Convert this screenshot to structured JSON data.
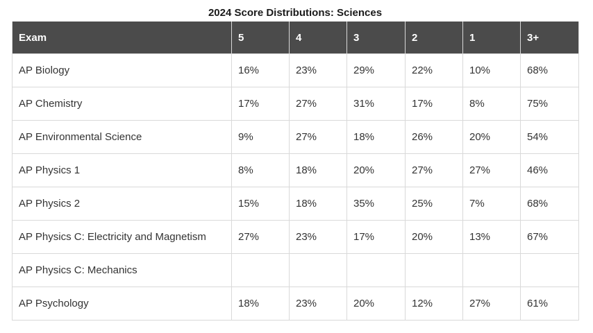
{
  "title": "2024 Score Distributions: Sciences",
  "headers": [
    "Exam",
    "5",
    "4",
    "3",
    "2",
    "1",
    "3+"
  ],
  "rows": [
    [
      "AP Biology",
      "16%",
      "23%",
      "29%",
      "22%",
      "10%",
      "68%"
    ],
    [
      "AP Chemistry",
      "17%",
      "27%",
      "31%",
      "17%",
      "8%",
      "75%"
    ],
    [
      "AP Environmental Science",
      "9%",
      "27%",
      "18%",
      "26%",
      "20%",
      "54%"
    ],
    [
      "AP Physics 1",
      "8%",
      "18%",
      "20%",
      "27%",
      "27%",
      "46%"
    ],
    [
      "AP Physics 2",
      "15%",
      "18%",
      "35%",
      "25%",
      "7%",
      "68%"
    ],
    [
      "AP Physics C: Electricity and Magnetism",
      "27%",
      "23%",
      "17%",
      "20%",
      "13%",
      "67%"
    ],
    [
      "AP Physics C: Mechanics",
      "",
      "",
      "",
      "",
      "",
      ""
    ],
    [
      "AP Psychology",
      "18%",
      "23%",
      "20%",
      "12%",
      "27%",
      "61%"
    ]
  ],
  "colors": {
    "header_bg": "#4b4b4b",
    "header_text": "#ffffff",
    "border": "#d9d9d9",
    "cell_text": "#333333"
  }
}
